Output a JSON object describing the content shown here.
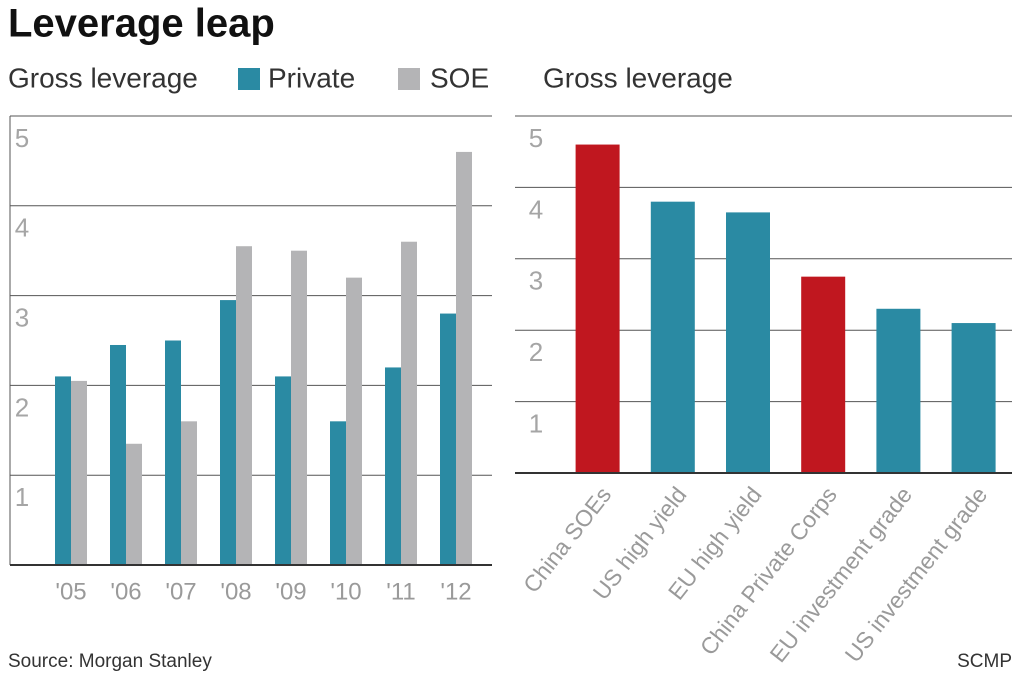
{
  "title": "Leverage leap",
  "source": "Source: Morgan Stanley",
  "credit": "SCMP",
  "chart_data": [
    {
      "type": "bar",
      "subtitle": "Gross leverage",
      "categories": [
        "'05",
        "'06",
        "'07",
        "'08",
        "'09",
        "'10",
        "'11",
        "'12"
      ],
      "series": [
        {
          "name": "Private",
          "color": "#2a8aa3",
          "values": [
            2.1,
            2.45,
            2.5,
            2.95,
            2.1,
            1.6,
            2.2,
            2.8
          ]
        },
        {
          "name": "SOE",
          "color": "#b4b4b6",
          "values": [
            2.05,
            1.35,
            1.6,
            3.55,
            3.5,
            3.2,
            3.6,
            4.6
          ]
        }
      ],
      "ylim": [
        0,
        5
      ],
      "yticks": [
        1,
        2,
        3,
        4,
        5
      ],
      "grid": true
    },
    {
      "type": "bar",
      "subtitle": "Gross leverage",
      "categories": [
        "China SOEs",
        "US high yield",
        "EU high yield",
        "China Private Corps",
        "EU investment grade",
        "US investment grade"
      ],
      "values": [
        4.6,
        3.8,
        3.65,
        2.75,
        2.3,
        2.1
      ],
      "colors": [
        "#c0171f",
        "#2a8aa3",
        "#2a8aa3",
        "#c0171f",
        "#2a8aa3",
        "#2a8aa3"
      ],
      "ylim": [
        0,
        5
      ],
      "yticks": [
        1,
        2,
        3,
        4,
        5
      ],
      "grid": true
    }
  ]
}
